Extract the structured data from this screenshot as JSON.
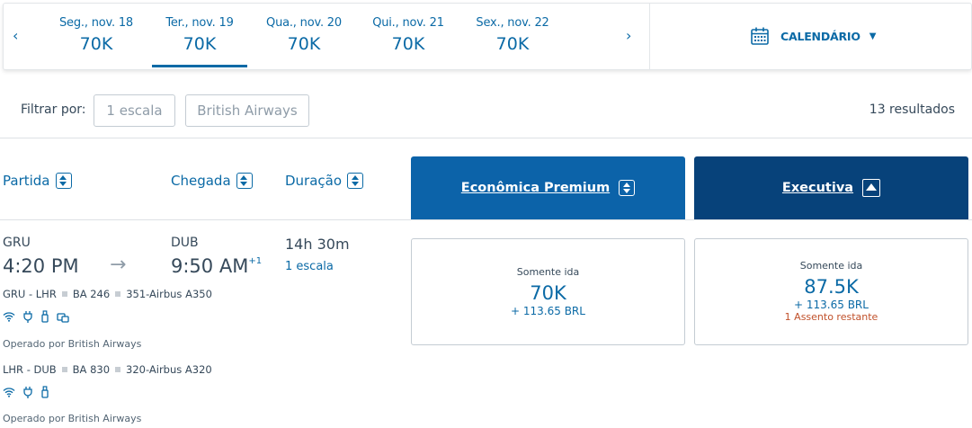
{
  "date_carousel": {
    "prev_icon": "‹",
    "next_icon": "›",
    "dates": [
      {
        "label": "Seg., nov. 18",
        "price": "70K",
        "selected": false
      },
      {
        "label": "Ter., nov. 19",
        "price": "70K",
        "selected": true
      },
      {
        "label": "Qua., nov. 20",
        "price": "70K",
        "selected": false
      },
      {
        "label": "Qui., nov. 21",
        "price": "70K",
        "selected": false
      },
      {
        "label": "Sex., nov. 22",
        "price": "70K",
        "selected": false
      }
    ],
    "calendar_label": "CALENDÁRIO"
  },
  "filters": {
    "label": "Filtrar por:",
    "chips": [
      "1 escala",
      "British Airways"
    ],
    "results": "13 resultados"
  },
  "sort_headers": {
    "departure": "Partida",
    "arrival": "Chegada",
    "duration": "Duração"
  },
  "cabins": {
    "premium": "Econômica Premium",
    "executive": "Executiva"
  },
  "flight": {
    "origin": "GRU",
    "destination": "DUB",
    "depart_time": "4:20 PM",
    "arrive_time": "9:50 AM",
    "day_offset": "+1",
    "duration": "14h 30m",
    "stops": "1 escala",
    "segments": [
      {
        "route": "GRU - LHR",
        "flight": "BA 246",
        "aircraft": "351-Airbus A350",
        "operated_by": "Operado por British Airways"
      },
      {
        "route": "LHR - DUB",
        "flight": "BA 830",
        "aircraft": "320-Airbus A320",
        "operated_by": "Operado por British Airways"
      }
    ]
  },
  "fares": {
    "premium": {
      "kind": "Somente ida",
      "points": "70K",
      "taxes": "+ 113.65 BRL"
    },
    "executive": {
      "kind": "Somente ida",
      "points": "87.5K",
      "taxes": "+ 113.65 BRL",
      "seats": "1 Assento restante"
    }
  },
  "colors": {
    "accent": "#0b6aa6",
    "premium_header": "#0c63a9",
    "executive_header": "#07427a",
    "seats_warning": "#c0502a"
  }
}
